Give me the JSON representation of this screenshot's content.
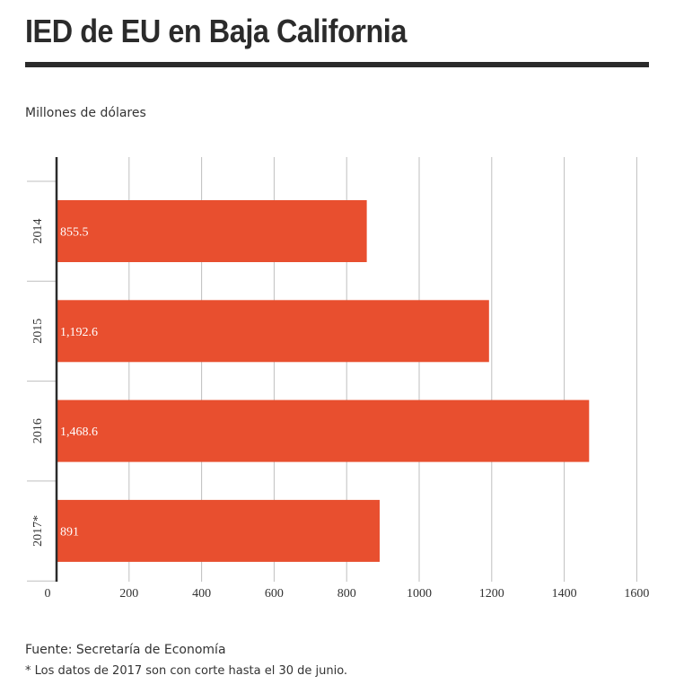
{
  "header": {
    "title": "IED de EU en Baja California"
  },
  "chart_data": {
    "type": "bar",
    "orientation": "horizontal",
    "title": "IED de EU en Baja California",
    "units_label": "Millones de dólares",
    "categories": [
      "2014",
      "2015",
      "2016",
      "2017*"
    ],
    "values": [
      855.5,
      1192.6,
      1468.6,
      891
    ],
    "value_labels": [
      "855.5",
      "1,192.6",
      "1,468.6",
      "891"
    ],
    "xlim": [
      0,
      1600
    ],
    "x_ticks": [
      0,
      200,
      400,
      600,
      800,
      1000,
      1200,
      1400,
      1600
    ],
    "grid": true,
    "bar_color": "#e84f2f",
    "axis_color": "#2b2b2b",
    "grid_color": "#bfbfbf",
    "label_color": "#ffffff"
  },
  "footer": {
    "source": "Fuente: Secretaría de Economía",
    "note": "* Los datos de 2017 son con corte hasta el 30 de junio."
  }
}
